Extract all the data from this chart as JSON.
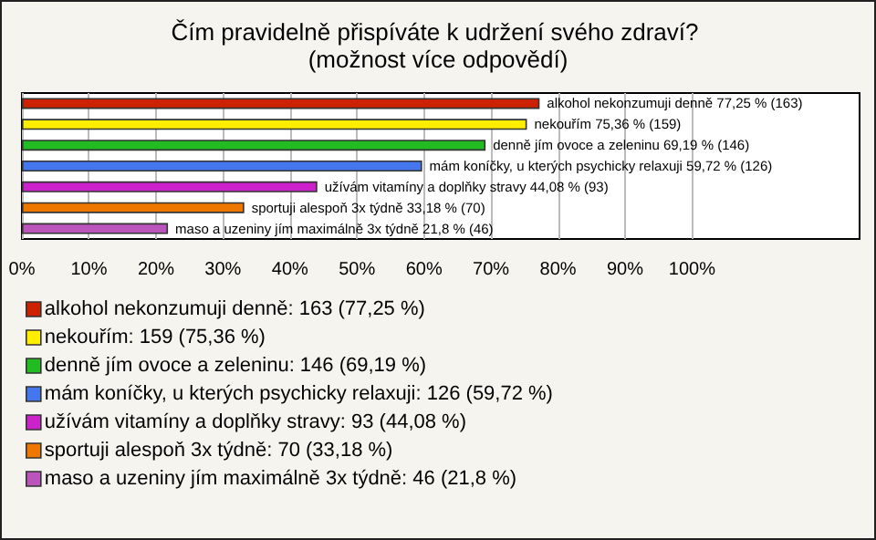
{
  "chart_data": {
    "type": "bar",
    "orientation": "horizontal",
    "title": "Čím pravidelně přispíváte k udržení svého zdraví? (možnost více odpovědí)",
    "categories": [
      null,
      null,
      null,
      null,
      null,
      null,
      null
    ],
    "series": [
      {
        "name": "alkohol nekonzumuji denně: 163 (77,25 %)",
        "color": "#cc2200",
        "values": [
          77.25,
          null,
          null,
          null,
          null,
          null,
          null
        ],
        "value_labels": [
          "alkohol nekonzumuji denně 77,25 % (163)",
          null,
          null,
          null,
          null,
          null,
          null
        ]
      },
      {
        "name": "nekouřím: 159 (75,36 %)",
        "color": "#ffee00",
        "values": [
          null,
          75.36,
          null,
          null,
          null,
          null,
          null
        ],
        "value_labels": [
          null,
          "nekouřím 75,36 % (159)",
          null,
          null,
          null,
          null,
          null
        ]
      },
      {
        "name": "denně jím ovoce a zeleninu: 146 (69,19 %)",
        "color": "#22bb22",
        "values": [
          null,
          null,
          69.19,
          null,
          null,
          null,
          null
        ],
        "value_labels": [
          null,
          null,
          "denně jím ovoce a zeleninu 69,19 % (146)",
          null,
          null,
          null,
          null
        ]
      },
      {
        "name": "mám koníčky, u kterých psychicky relaxuji: 126 (59,72 %)",
        "color": "#4477ee",
        "values": [
          null,
          null,
          null,
          59.72,
          null,
          null,
          null
        ],
        "value_labels": [
          null,
          null,
          null,
          "mám koníčky, u kterých psychicky relaxuji 59,72 % (126)",
          null,
          null,
          null
        ]
      },
      {
        "name": "užívám vitamíny a doplňky stravy: 93 (44,08 %)",
        "color": "#cc22cc",
        "values": [
          null,
          null,
          null,
          null,
          44.08,
          null,
          null
        ],
        "value_labels": [
          null,
          null,
          null,
          null,
          "užívám vitamíny a doplňky stravy 44,08 % (93)",
          null,
          null
        ]
      },
      {
        "name": "sportuji alespoň 3x týdně: 70 (33,18 %)",
        "color": "#ee7700",
        "values": [
          null,
          null,
          null,
          null,
          null,
          33.18,
          null
        ],
        "value_labels": [
          null,
          null,
          null,
          null,
          null,
          "sportuji alespoň 3x týdně 33,18 % (70)",
          null
        ]
      },
      {
        "name": "maso a uzeniny jím maximálně 3x týdně: 46 (21,8 %)",
        "color": "#bb55bb",
        "values": [
          null,
          null,
          null,
          null,
          null,
          null,
          21.8
        ],
        "value_labels": [
          null,
          null,
          null,
          null,
          null,
          null,
          "maso a uzeniny jím maximálně 3x týdně 21,8 % (46)"
        ]
      }
    ],
    "xlim": [
      0,
      125
    ],
    "xticks": [
      {
        "value": 0,
        "label": "0%"
      },
      {
        "value": 10,
        "label": "10%"
      },
      {
        "value": 20,
        "label": "20%"
      },
      {
        "value": 30,
        "label": "30%"
      },
      {
        "value": 40,
        "label": "40%"
      },
      {
        "value": 50,
        "label": "50%"
      },
      {
        "value": 60,
        "label": "60%"
      },
      {
        "value": 70,
        "label": "70%"
      },
      {
        "value": 80,
        "label": "80%"
      },
      {
        "value": 90,
        "label": "90%"
      },
      {
        "value": 100,
        "label": "100%"
      }
    ],
    "grid": "x",
    "legend": "bottom",
    "tick_labels": "x"
  }
}
